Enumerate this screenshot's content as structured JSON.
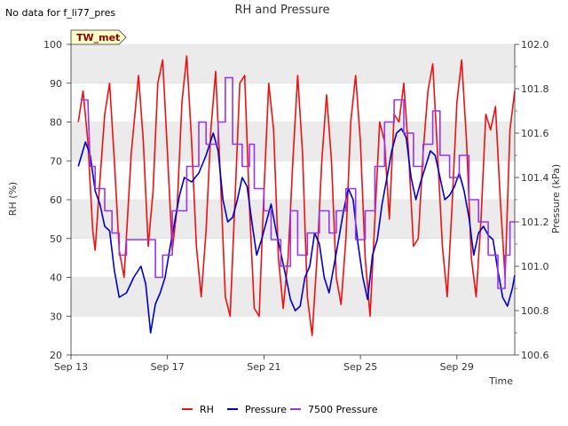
{
  "no_data_note": "No data for f_li77_pres",
  "station_badge": "TW_met",
  "chart_data": {
    "type": "line",
    "title": "RH and Pressure",
    "xlabel": "Time",
    "ylabel_left": "RH (%)",
    "ylabel_right": "Pressure (kPa)",
    "x_ticks": [
      "Sep 13",
      "Sep 17",
      "Sep 21",
      "Sep 25",
      "Sep 29"
    ],
    "x_tick_days": [
      13,
      17,
      21,
      25,
      29
    ],
    "xlim_days": [
      13,
      31.4
    ],
    "ylim_left": [
      20,
      100
    ],
    "yticks_left": [
      20,
      30,
      40,
      50,
      60,
      70,
      80,
      90,
      100
    ],
    "ylim_right": [
      100.6,
      102.0
    ],
    "yticks_right": [
      100.6,
      100.8,
      101.0,
      101.2,
      101.4,
      101.6,
      101.8,
      102.0
    ],
    "grid": "horizontal bands",
    "legend_placement": "bottom-center",
    "series": [
      {
        "name": "RH",
        "axis": "left",
        "color": "#ee1111",
        "points": [
          [
            13.3,
            80
          ],
          [
            13.5,
            88
          ],
          [
            13.7,
            75
          ],
          [
            13.9,
            52
          ],
          [
            14.0,
            47
          ],
          [
            14.2,
            65
          ],
          [
            14.4,
            82
          ],
          [
            14.6,
            90
          ],
          [
            14.8,
            70
          ],
          [
            15.0,
            47
          ],
          [
            15.2,
            40
          ],
          [
            15.5,
            72
          ],
          [
            15.8,
            92
          ],
          [
            16.0,
            75
          ],
          [
            16.2,
            48
          ],
          [
            16.4,
            62
          ],
          [
            16.6,
            90
          ],
          [
            16.8,
            96
          ],
          [
            17.0,
            72
          ],
          [
            17.2,
            47
          ],
          [
            17.4,
            58
          ],
          [
            17.6,
            85
          ],
          [
            17.8,
            97
          ],
          [
            18.0,
            75
          ],
          [
            18.2,
            48
          ],
          [
            18.4,
            35
          ],
          [
            18.6,
            52
          ],
          [
            18.8,
            78
          ],
          [
            19.0,
            93
          ],
          [
            19.2,
            65
          ],
          [
            19.4,
            35
          ],
          [
            19.6,
            30
          ],
          [
            19.8,
            60
          ],
          [
            20.0,
            90
          ],
          [
            20.2,
            92
          ],
          [
            20.4,
            58
          ],
          [
            20.6,
            32
          ],
          [
            20.8,
            30
          ],
          [
            21.0,
            62
          ],
          [
            21.2,
            90
          ],
          [
            21.4,
            78
          ],
          [
            21.6,
            45
          ],
          [
            21.8,
            32
          ],
          [
            22.0,
            45
          ],
          [
            22.2,
            70
          ],
          [
            22.4,
            92
          ],
          [
            22.6,
            72
          ],
          [
            22.8,
            35
          ],
          [
            23.0,
            25
          ],
          [
            23.2,
            45
          ],
          [
            23.4,
            70
          ],
          [
            23.6,
            87
          ],
          [
            23.8,
            70
          ],
          [
            24.0,
            40
          ],
          [
            24.2,
            33
          ],
          [
            24.4,
            50
          ],
          [
            24.6,
            80
          ],
          [
            24.8,
            92
          ],
          [
            25.0,
            75
          ],
          [
            25.2,
            45
          ],
          [
            25.4,
            30
          ],
          [
            25.6,
            55
          ],
          [
            25.8,
            80
          ],
          [
            26.0,
            75
          ],
          [
            26.2,
            55
          ],
          [
            26.4,
            82
          ],
          [
            26.6,
            80
          ],
          [
            26.8,
            90
          ],
          [
            27.0,
            72
          ],
          [
            27.2,
            48
          ],
          [
            27.4,
            50
          ],
          [
            27.6,
            72
          ],
          [
            27.8,
            88
          ],
          [
            28.0,
            95
          ],
          [
            28.2,
            72
          ],
          [
            28.4,
            48
          ],
          [
            28.6,
            35
          ],
          [
            28.8,
            58
          ],
          [
            29.0,
            85
          ],
          [
            29.2,
            96
          ],
          [
            29.4,
            75
          ],
          [
            29.6,
            45
          ],
          [
            29.8,
            35
          ],
          [
            30.0,
            55
          ],
          [
            30.2,
            82
          ],
          [
            30.4,
            78
          ],
          [
            30.6,
            84
          ],
          [
            30.8,
            60
          ],
          [
            31.0,
            40
          ],
          [
            31.2,
            78
          ],
          [
            31.4,
            88
          ]
        ]
      },
      {
        "name": "Pressure",
        "axis": "right",
        "color": "#0000cc",
        "points": [
          [
            13.3,
            101.45
          ],
          [
            13.6,
            101.56
          ],
          [
            13.8,
            101.5
          ],
          [
            14.0,
            101.34
          ],
          [
            14.2,
            101.28
          ],
          [
            14.4,
            101.18
          ],
          [
            14.6,
            101.16
          ],
          [
            14.8,
            100.98
          ],
          [
            15.0,
            100.86
          ],
          [
            15.3,
            100.88
          ],
          [
            15.6,
            100.95
          ],
          [
            15.9,
            101.0
          ],
          [
            16.1,
            100.92
          ],
          [
            16.3,
            100.7
          ],
          [
            16.5,
            100.83
          ],
          [
            16.7,
            100.88
          ],
          [
            16.9,
            100.95
          ],
          [
            17.1,
            101.08
          ],
          [
            17.3,
            101.2
          ],
          [
            17.5,
            101.32
          ],
          [
            17.7,
            101.4
          ],
          [
            18.0,
            101.38
          ],
          [
            18.3,
            101.42
          ],
          [
            18.6,
            101.5
          ],
          [
            18.9,
            101.6
          ],
          [
            19.1,
            101.52
          ],
          [
            19.3,
            101.3
          ],
          [
            19.5,
            101.2
          ],
          [
            19.7,
            101.22
          ],
          [
            19.9,
            101.3
          ],
          [
            20.1,
            101.4
          ],
          [
            20.3,
            101.36
          ],
          [
            20.5,
            101.2
          ],
          [
            20.7,
            101.05
          ],
          [
            20.9,
            101.12
          ],
          [
            21.1,
            101.2
          ],
          [
            21.3,
            101.28
          ],
          [
            21.5,
            101.16
          ],
          [
            21.7,
            101.06
          ],
          [
            21.9,
            100.96
          ],
          [
            22.1,
            100.85
          ],
          [
            22.3,
            100.8
          ],
          [
            22.5,
            100.82
          ],
          [
            22.7,
            100.95
          ],
          [
            22.9,
            101.0
          ],
          [
            23.1,
            101.15
          ],
          [
            23.3,
            101.1
          ],
          [
            23.5,
            100.95
          ],
          [
            23.7,
            100.88
          ],
          [
            23.9,
            101.0
          ],
          [
            24.1,
            101.12
          ],
          [
            24.3,
            101.25
          ],
          [
            24.5,
            101.35
          ],
          [
            24.7,
            101.3
          ],
          [
            24.9,
            101.1
          ],
          [
            25.1,
            100.95
          ],
          [
            25.3,
            100.85
          ],
          [
            25.5,
            101.05
          ],
          [
            25.7,
            101.12
          ],
          [
            25.9,
            101.28
          ],
          [
            26.1,
            101.4
          ],
          [
            26.3,
            101.52
          ],
          [
            26.5,
            101.6
          ],
          [
            26.7,
            101.62
          ],
          [
            26.9,
            101.58
          ],
          [
            27.1,
            101.4
          ],
          [
            27.3,
            101.3
          ],
          [
            27.5,
            101.38
          ],
          [
            27.7,
            101.45
          ],
          [
            27.9,
            101.52
          ],
          [
            28.1,
            101.5
          ],
          [
            28.3,
            101.4
          ],
          [
            28.5,
            101.3
          ],
          [
            28.7,
            101.32
          ],
          [
            28.9,
            101.36
          ],
          [
            29.1,
            101.42
          ],
          [
            29.3,
            101.34
          ],
          [
            29.5,
            101.22
          ],
          [
            29.7,
            101.05
          ],
          [
            29.9,
            101.15
          ],
          [
            30.1,
            101.18
          ],
          [
            30.3,
            101.14
          ],
          [
            30.5,
            101.12
          ],
          [
            30.7,
            100.98
          ],
          [
            30.9,
            100.86
          ],
          [
            31.1,
            100.82
          ],
          [
            31.3,
            100.9
          ],
          [
            31.4,
            100.96
          ]
        ]
      },
      {
        "name": "7500 Pressure",
        "axis": "right",
        "color": "#9933ee",
        "points": [
          [
            13.4,
            101.75
          ],
          [
            13.7,
            101.75
          ],
          [
            13.8,
            101.45
          ],
          [
            14.0,
            101.45
          ],
          [
            14.0,
            101.35
          ],
          [
            14.4,
            101.35
          ],
          [
            14.4,
            101.25
          ],
          [
            14.7,
            101.25
          ],
          [
            14.7,
            101.15
          ],
          [
            15.0,
            101.15
          ],
          [
            15.0,
            101.05
          ],
          [
            15.3,
            101.05
          ],
          [
            15.3,
            101.12
          ],
          [
            16.5,
            101.12
          ],
          [
            16.5,
            100.95
          ],
          [
            16.8,
            100.95
          ],
          [
            16.8,
            101.05
          ],
          [
            17.2,
            101.05
          ],
          [
            17.2,
            101.25
          ],
          [
            17.8,
            101.25
          ],
          [
            17.8,
            101.45
          ],
          [
            18.3,
            101.45
          ],
          [
            18.3,
            101.65
          ],
          [
            18.6,
            101.65
          ],
          [
            18.6,
            101.55
          ],
          [
            19.1,
            101.55
          ],
          [
            19.1,
            101.65
          ],
          [
            19.4,
            101.65
          ],
          [
            19.4,
            101.85
          ],
          [
            19.7,
            101.85
          ],
          [
            19.7,
            101.55
          ],
          [
            20.1,
            101.55
          ],
          [
            20.1,
            101.45
          ],
          [
            20.4,
            101.45
          ],
          [
            20.4,
            101.55
          ],
          [
            20.6,
            101.55
          ],
          [
            20.6,
            101.35
          ],
          [
            21.0,
            101.35
          ],
          [
            21.0,
            101.25
          ],
          [
            21.3,
            101.25
          ],
          [
            21.3,
            101.12
          ],
          [
            21.7,
            101.12
          ],
          [
            21.7,
            101.0
          ],
          [
            22.1,
            101.0
          ],
          [
            22.1,
            101.25
          ],
          [
            22.4,
            101.25
          ],
          [
            22.4,
            101.05
          ],
          [
            22.8,
            101.05
          ],
          [
            22.8,
            101.15
          ],
          [
            23.3,
            101.15
          ],
          [
            23.3,
            101.25
          ],
          [
            23.7,
            101.25
          ],
          [
            23.7,
            101.15
          ],
          [
            24.0,
            101.15
          ],
          [
            24.0,
            101.25
          ],
          [
            24.4,
            101.25
          ],
          [
            24.4,
            101.35
          ],
          [
            24.8,
            101.35
          ],
          [
            24.8,
            101.12
          ],
          [
            25.2,
            101.12
          ],
          [
            25.2,
            101.25
          ],
          [
            25.6,
            101.25
          ],
          [
            25.6,
            101.45
          ],
          [
            26.0,
            101.45
          ],
          [
            26.0,
            101.65
          ],
          [
            26.4,
            101.65
          ],
          [
            26.4,
            101.75
          ],
          [
            26.8,
            101.75
          ],
          [
            26.8,
            101.6
          ],
          [
            27.2,
            101.6
          ],
          [
            27.2,
            101.45
          ],
          [
            27.6,
            101.45
          ],
          [
            27.6,
            101.55
          ],
          [
            28.0,
            101.55
          ],
          [
            28.0,
            101.7
          ],
          [
            28.3,
            101.7
          ],
          [
            28.3,
            101.5
          ],
          [
            28.7,
            101.5
          ],
          [
            28.7,
            101.4
          ],
          [
            29.1,
            101.4
          ],
          [
            29.1,
            101.5
          ],
          [
            29.5,
            101.5
          ],
          [
            29.5,
            101.3
          ],
          [
            29.9,
            101.3
          ],
          [
            29.9,
            101.2
          ],
          [
            30.3,
            101.2
          ],
          [
            30.3,
            101.05
          ],
          [
            30.7,
            101.05
          ],
          [
            30.7,
            100.9
          ],
          [
            31.0,
            100.9
          ],
          [
            31.0,
            101.05
          ],
          [
            31.2,
            101.05
          ],
          [
            31.2,
            101.2
          ],
          [
            31.4,
            101.2
          ]
        ]
      }
    ]
  }
}
